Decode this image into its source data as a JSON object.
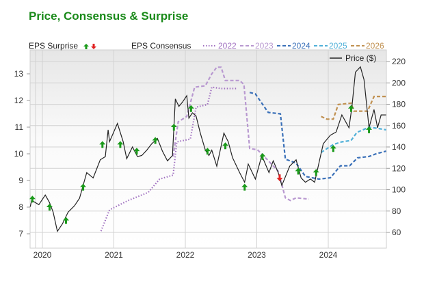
{
  "chart_data": {
    "type": "line",
    "title": "Price, Consensus & Surprise",
    "left_axis": {
      "label": "",
      "ticks": [
        7,
        8,
        9,
        10,
        11,
        12,
        13
      ],
      "range": [
        6.5,
        13.6
      ]
    },
    "right_axis": {
      "label": "",
      "ticks": [
        60,
        80,
        100,
        120,
        140,
        160,
        180,
        200,
        220
      ],
      "range": [
        46,
        224
      ]
    },
    "x_ticks": [
      "2020",
      "2021",
      "2022",
      "2023",
      "2024"
    ],
    "x_range": [
      2019.83,
      2024.83
    ],
    "grid": true,
    "legend": {
      "surprise_label": "EPS Surprise",
      "consensus_label": "EPS Consensus",
      "price_label": "Price ($)",
      "position": "top"
    },
    "price": {
      "name": "Price ($)",
      "axis": "right",
      "color": "#222222",
      "points": [
        [
          2019.83,
          84
        ],
        [
          2019.85,
          90
        ],
        [
          2019.95,
          86
        ],
        [
          2020.04,
          95
        ],
        [
          2020.1,
          88
        ],
        [
          2020.15,
          79
        ],
        [
          2020.21,
          61
        ],
        [
          2020.28,
          68
        ],
        [
          2020.36,
          79
        ],
        [
          2020.45,
          85
        ],
        [
          2020.52,
          92
        ],
        [
          2020.62,
          116
        ],
        [
          2020.71,
          111
        ],
        [
          2020.81,
          128
        ],
        [
          2020.88,
          131
        ],
        [
          2020.92,
          156
        ],
        [
          2020.94,
          145
        ],
        [
          2021.05,
          162
        ],
        [
          2021.13,
          145
        ],
        [
          2021.18,
          129
        ],
        [
          2021.26,
          140
        ],
        [
          2021.33,
          131
        ],
        [
          2021.39,
          132
        ],
        [
          2021.46,
          137
        ],
        [
          2021.53,
          143
        ],
        [
          2021.61,
          148
        ],
        [
          2021.68,
          136
        ],
        [
          2021.75,
          127
        ],
        [
          2021.82,
          132
        ],
        [
          2021.86,
          185
        ],
        [
          2021.91,
          178
        ],
        [
          2021.96,
          182
        ],
        [
          2022.02,
          188
        ],
        [
          2022.05,
          167
        ],
        [
          2022.1,
          172
        ],
        [
          2022.15,
          169
        ],
        [
          2022.21,
          153
        ],
        [
          2022.28,
          137
        ],
        [
          2022.33,
          132
        ],
        [
          2022.37,
          137
        ],
        [
          2022.44,
          122
        ],
        [
          2022.54,
          153
        ],
        [
          2022.6,
          145
        ],
        [
          2022.66,
          130
        ],
        [
          2022.76,
          116
        ],
        [
          2022.83,
          107
        ],
        [
          2022.88,
          124
        ],
        [
          2022.98,
          110
        ],
        [
          2023.07,
          132
        ],
        [
          2023.17,
          116
        ],
        [
          2023.23,
          127
        ],
        [
          2023.3,
          116
        ],
        [
          2023.35,
          104
        ],
        [
          2023.46,
          122
        ],
        [
          2023.55,
          128
        ],
        [
          2023.62,
          111
        ],
        [
          2023.68,
          107
        ],
        [
          2023.75,
          110
        ],
        [
          2023.81,
          107
        ],
        [
          2023.87,
          125
        ],
        [
          2023.93,
          143
        ],
        [
          2024.03,
          151
        ],
        [
          2024.11,
          154
        ],
        [
          2024.19,
          170
        ],
        [
          2024.29,
          158
        ],
        [
          2024.33,
          177
        ],
        [
          2024.38,
          210
        ],
        [
          2024.45,
          215
        ],
        [
          2024.5,
          203
        ],
        [
          2024.57,
          158
        ],
        [
          2024.64,
          175
        ],
        [
          2024.69,
          158
        ],
        [
          2024.74,
          170
        ],
        [
          2024.81,
          170
        ]
      ]
    },
    "consensus": [
      {
        "name": "2022",
        "axis": "left",
        "color": "#a070c0",
        "style": "dotted",
        "points": [
          [
            2020.82,
            7.1
          ],
          [
            2020.94,
            7.9
          ],
          [
            2021.2,
            8.25
          ],
          [
            2021.48,
            8.55
          ],
          [
            2021.64,
            9.05
          ],
          [
            2021.83,
            9.2
          ],
          [
            2021.88,
            10.45
          ],
          [
            2022.07,
            10.55
          ],
          [
            2022.15,
            11.75
          ],
          [
            2022.31,
            11.85
          ],
          [
            2022.37,
            12.5
          ],
          [
            2022.5,
            12.45
          ],
          [
            2022.73,
            12.45
          ]
        ]
      },
      {
        "name": "2023",
        "axis": "left",
        "color": "#b898d0",
        "style": "dashed",
        "points": [
          [
            2021.83,
            9.9
          ],
          [
            2021.9,
            11.2
          ],
          [
            2022.02,
            11.4
          ],
          [
            2022.13,
            12.5
          ],
          [
            2022.28,
            12.55
          ],
          [
            2022.37,
            13.0
          ],
          [
            2022.44,
            13.25
          ],
          [
            2022.5,
            13.25
          ],
          [
            2022.56,
            12.75
          ],
          [
            2022.76,
            12.75
          ],
          [
            2022.82,
            12.6
          ],
          [
            2022.9,
            10.2
          ],
          [
            2023.01,
            10.15
          ],
          [
            2023.14,
            9.8
          ],
          [
            2023.3,
            9.35
          ],
          [
            2023.4,
            8.35
          ],
          [
            2023.47,
            8.25
          ],
          [
            2023.55,
            8.35
          ],
          [
            2023.73,
            8.3
          ]
        ]
      },
      {
        "name": "2024",
        "axis": "left",
        "color": "#3a70b8",
        "style": "dashed",
        "points": [
          [
            2022.9,
            12.3
          ],
          [
            2022.98,
            12.25
          ],
          [
            2023.16,
            11.55
          ],
          [
            2023.33,
            11.5
          ],
          [
            2023.4,
            9.8
          ],
          [
            2023.55,
            9.65
          ],
          [
            2023.68,
            9.15
          ],
          [
            2023.87,
            9.05
          ],
          [
            2024.03,
            9.1
          ],
          [
            2024.17,
            9.55
          ],
          [
            2024.3,
            9.55
          ],
          [
            2024.41,
            9.85
          ],
          [
            2024.57,
            9.9
          ],
          [
            2024.67,
            10.0
          ],
          [
            2024.81,
            10.1
          ]
        ]
      },
      {
        "name": "2025",
        "axis": "left",
        "color": "#50b0d8",
        "style": "dashed",
        "points": [
          [
            2023.9,
            10.05
          ],
          [
            2024.07,
            10.35
          ],
          [
            2024.19,
            10.45
          ],
          [
            2024.32,
            10.5
          ],
          [
            2024.4,
            10.8
          ],
          [
            2024.57,
            11.0
          ],
          [
            2024.7,
            10.95
          ],
          [
            2024.81,
            10.9
          ]
        ]
      },
      {
        "name": "2026",
        "axis": "left",
        "color": "#c09050",
        "style": "dashed",
        "points": [
          [
            2023.9,
            11.4
          ],
          [
            2023.98,
            11.3
          ],
          [
            2024.07,
            11.3
          ],
          [
            2024.14,
            11.85
          ],
          [
            2024.32,
            11.9
          ],
          [
            2024.36,
            11.6
          ],
          [
            2024.55,
            11.6
          ],
          [
            2024.64,
            12.15
          ],
          [
            2024.81,
            12.15
          ]
        ]
      }
    ],
    "surprises": {
      "axis": "left",
      "up_color": "#1a9a1a",
      "down_color": "#e02020",
      "points": [
        [
          2019.86,
          8.3,
          "up"
        ],
        [
          2020.1,
          8.0,
          "up"
        ],
        [
          2020.33,
          7.5,
          "up"
        ],
        [
          2020.57,
          8.75,
          "up"
        ],
        [
          2020.84,
          10.35,
          "up"
        ],
        [
          2021.09,
          10.35,
          "up"
        ],
        [
          2021.32,
          10.1,
          "up"
        ],
        [
          2021.58,
          10.5,
          "up"
        ],
        [
          2021.84,
          11.0,
          "up"
        ],
        [
          2022.08,
          11.7,
          "up"
        ],
        [
          2022.31,
          10.1,
          "up"
        ],
        [
          2022.56,
          10.3,
          "up"
        ],
        [
          2022.83,
          8.75,
          "up"
        ],
        [
          2023.08,
          9.9,
          "up"
        ],
        [
          2023.32,
          9.1,
          "down"
        ],
        [
          2023.58,
          9.35,
          "up"
        ],
        [
          2023.83,
          9.3,
          "up"
        ],
        [
          2024.07,
          10.2,
          "up"
        ],
        [
          2024.32,
          11.7,
          "up"
        ],
        [
          2024.57,
          10.9,
          "up"
        ]
      ]
    }
  }
}
